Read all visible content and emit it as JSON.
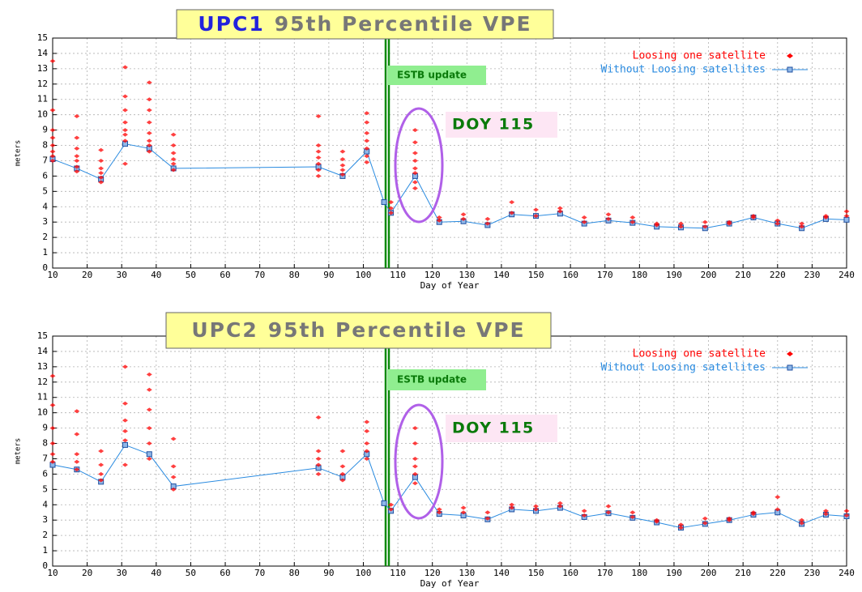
{
  "chart_data": [
    {
      "type": "line",
      "title_prefix": "UPC1",
      "title": "95th Percentile VPE",
      "x_label": "Day of Year",
      "y_label": "meters",
      "annotations": [
        "ESTB update",
        "DOY 115"
      ],
      "xlim": [
        10,
        240
      ],
      "ylim": [
        0,
        15
      ],
      "xticks": [
        10,
        20,
        30,
        40,
        50,
        60,
        70,
        80,
        90,
        100,
        110,
        120,
        130,
        140,
        150,
        160,
        170,
        180,
        190,
        200,
        210,
        220,
        230,
        240
      ],
      "yticks": [
        0,
        1,
        2,
        3,
        4,
        5,
        6,
        7,
        8,
        9,
        10,
        11,
        12,
        13,
        14,
        15
      ],
      "grid": true,
      "legend": "upper right",
      "series": [
        {
          "name": "Loosing one satellite",
          "type": "scatter",
          "color": "#ff0000",
          "x": [
            10,
            10,
            10,
            10,
            10,
            10,
            10,
            10,
            17,
            17,
            17,
            17,
            17,
            17,
            17,
            24,
            24,
            24,
            24,
            24,
            24,
            31,
            31,
            31,
            31,
            31,
            31,
            31,
            31,
            38,
            38,
            38,
            38,
            38,
            38,
            38,
            38,
            45,
            45,
            45,
            45,
            45,
            45,
            87,
            87,
            87,
            87,
            87,
            87,
            87,
            94,
            94,
            94,
            94,
            94,
            101,
            101,
            101,
            101,
            101,
            101,
            101,
            108,
            108,
            108,
            115,
            115,
            115,
            115,
            115,
            115,
            115,
            115,
            122,
            122,
            129,
            129,
            136,
            136,
            143,
            143,
            150,
            150,
            157,
            157,
            164,
            164,
            171,
            171,
            178,
            178,
            185,
            185,
            192,
            192,
            199,
            199,
            206,
            206,
            213,
            213,
            220,
            220,
            227,
            227,
            234,
            234,
            240,
            240
          ],
          "values": [
            13.5,
            10.3,
            9.0,
            8.5,
            8.0,
            7.6,
            7.3,
            7.0,
            9.9,
            8.5,
            7.8,
            7.3,
            7.0,
            6.6,
            6.3,
            7.7,
            7.0,
            6.5,
            6.2,
            5.9,
            5.6,
            13.1,
            11.2,
            10.3,
            9.5,
            9.0,
            8.7,
            8.3,
            6.8,
            12.1,
            11.0,
            10.3,
            9.5,
            8.8,
            8.3,
            8.0,
            7.6,
            8.7,
            8.0,
            7.5,
            7.1,
            6.8,
            6.4,
            9.9,
            8.0,
            7.6,
            7.2,
            6.8,
            6.4,
            6.0,
            7.6,
            7.1,
            6.7,
            6.4,
            6.1,
            10.1,
            9.5,
            8.8,
            8.3,
            7.8,
            7.3,
            6.9,
            4.3,
            3.9,
            3.6,
            9.0,
            8.2,
            7.5,
            7.0,
            6.5,
            6.2,
            5.6,
            5.2,
            3.3,
            3.1,
            3.5,
            3.2,
            3.2,
            2.9,
            4.3,
            3.6,
            3.8,
            3.4,
            3.9,
            3.7,
            3.3,
            3.0,
            3.5,
            3.2,
            3.3,
            3.0,
            2.9,
            2.8,
            2.9,
            2.7,
            3.0,
            2.7,
            3.0,
            2.9,
            3.4,
            3.3,
            3.1,
            2.9,
            2.9,
            2.7,
            3.4,
            3.3,
            3.7,
            3.4
          ]
        },
        {
          "name": "Without Loosing satellites",
          "type": "line",
          "color": "#2a8be0",
          "x": [
            10,
            17,
            24,
            31,
            38,
            45,
            87,
            94,
            101,
            106,
            108,
            115,
            122,
            129,
            136,
            143,
            150,
            157,
            164,
            171,
            178,
            185,
            192,
            199,
            206,
            213,
            220,
            227,
            234,
            240
          ],
          "values": [
            7.1,
            6.5,
            5.8,
            8.1,
            7.8,
            6.5,
            6.6,
            6.0,
            7.6,
            4.3,
            3.6,
            6.0,
            3.0,
            3.05,
            2.8,
            3.5,
            3.4,
            3.55,
            2.9,
            3.1,
            2.95,
            2.7,
            2.65,
            2.6,
            2.9,
            3.3,
            2.9,
            2.6,
            3.2,
            3.15
          ]
        }
      ]
    },
    {
      "type": "line",
      "title_prefix": "UPC2",
      "title": "95th Percentile VPE",
      "x_label": "Day of Year",
      "y_label": "meters",
      "annotations": [
        "ESTB update",
        "DOY 115"
      ],
      "xlim": [
        10,
        240
      ],
      "ylim": [
        0,
        15
      ],
      "xticks": [
        10,
        20,
        30,
        40,
        50,
        60,
        70,
        80,
        90,
        100,
        110,
        120,
        130,
        140,
        150,
        160,
        170,
        180,
        190,
        200,
        210,
        220,
        230,
        240
      ],
      "yticks": [
        0,
        1,
        2,
        3,
        4,
        5,
        6,
        7,
        8,
        9,
        10,
        11,
        12,
        13,
        14,
        15
      ],
      "grid": true,
      "legend": "upper right",
      "series": [
        {
          "name": "Loosing one satellite",
          "type": "scatter",
          "color": "#ff0000",
          "x": [
            10,
            10,
            10,
            10,
            10,
            10,
            17,
            17,
            17,
            17,
            17,
            24,
            24,
            24,
            24,
            31,
            31,
            31,
            31,
            31,
            31,
            38,
            38,
            38,
            38,
            38,
            38,
            45,
            45,
            45,
            45,
            87,
            87,
            87,
            87,
            87,
            94,
            94,
            94,
            94,
            101,
            101,
            101,
            101,
            101,
            108,
            108,
            115,
            115,
            115,
            115,
            115,
            115,
            122,
            122,
            129,
            129,
            136,
            136,
            143,
            143,
            150,
            150,
            157,
            157,
            164,
            164,
            171,
            171,
            178,
            178,
            185,
            185,
            192,
            192,
            199,
            199,
            206,
            206,
            213,
            213,
            220,
            220,
            227,
            227,
            234,
            234,
            240,
            240
          ],
          "values": [
            12.4,
            10.5,
            9.0,
            8.0,
            7.3,
            6.8,
            10.1,
            8.6,
            7.3,
            6.8,
            6.3,
            7.5,
            6.6,
            6.0,
            5.6,
            13.0,
            10.6,
            9.5,
            8.8,
            8.2,
            6.6,
            12.5,
            11.5,
            10.2,
            9.0,
            8.0,
            7.0,
            8.3,
            6.5,
            5.8,
            5.0,
            9.7,
            7.5,
            7.0,
            6.6,
            6.0,
            7.5,
            6.5,
            6.0,
            5.6,
            9.4,
            8.8,
            8.0,
            7.5,
            7.0,
            4.0,
            3.7,
            9.0,
            8.0,
            7.0,
            6.5,
            6.0,
            5.4,
            3.7,
            3.5,
            3.8,
            3.5,
            3.5,
            3.1,
            4.0,
            3.8,
            3.9,
            3.7,
            4.1,
            3.9,
            3.6,
            3.3,
            3.9,
            3.5,
            3.5,
            3.2,
            3.0,
            2.9,
            2.7,
            2.5,
            3.1,
            2.8,
            3.1,
            3.0,
            3.5,
            3.4,
            4.5,
            3.7,
            3.0,
            2.8,
            3.6,
            3.4,
            3.6,
            3.3
          ]
        },
        {
          "name": "Without Loosing satellites",
          "type": "line",
          "color": "#2a8be0",
          "x": [
            10,
            17,
            24,
            31,
            38,
            45,
            87,
            94,
            101,
            106,
            108,
            115,
            122,
            129,
            136,
            143,
            150,
            157,
            164,
            171,
            178,
            185,
            192,
            199,
            206,
            213,
            220,
            227,
            234,
            240
          ],
          "values": [
            6.6,
            6.3,
            5.5,
            7.9,
            7.3,
            5.2,
            6.4,
            5.8,
            7.3,
            4.1,
            3.6,
            5.8,
            3.4,
            3.3,
            3.05,
            3.7,
            3.6,
            3.8,
            3.2,
            3.45,
            3.15,
            2.85,
            2.5,
            2.75,
            3.0,
            3.35,
            3.5,
            2.75,
            3.35,
            3.25
          ]
        }
      ]
    }
  ]
}
